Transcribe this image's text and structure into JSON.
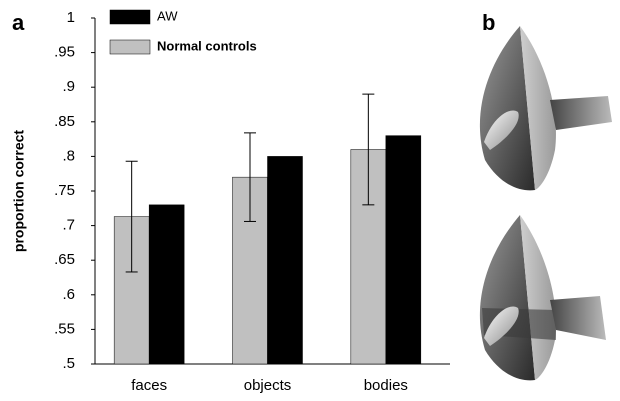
{
  "chart_data": {
    "type": "bar",
    "panel_labels": [
      "a",
      "b"
    ],
    "ylabel": "proportion correct",
    "categories": [
      "faces",
      "objects",
      "bodies"
    ],
    "series": [
      {
        "name": "AW",
        "color": "#000000",
        "values": [
          0.73,
          0.8,
          0.83
        ]
      },
      {
        "name": "Normal controls",
        "color": "#c0c0c0",
        "values": [
          0.713,
          0.77,
          0.81
        ],
        "errors": [
          0.08,
          0.064,
          0.08
        ]
      }
    ],
    "ylim": [
      0.5,
      1
    ],
    "yticks": [
      {
        "value": 0.5,
        "label": ".5"
      },
      {
        "value": 0.55,
        "label": ".55"
      },
      {
        "value": 0.6,
        "label": ".6"
      },
      {
        "value": 0.65,
        "label": ".65"
      },
      {
        "value": 0.7,
        "label": ".7"
      },
      {
        "value": 0.75,
        "label": ".75"
      },
      {
        "value": 0.8,
        "label": ".8"
      },
      {
        "value": 0.85,
        "label": ".85"
      },
      {
        "value": 0.9,
        "label": ".9"
      },
      {
        "value": 0.95,
        "label": ".95"
      },
      1
    ]
  }
}
